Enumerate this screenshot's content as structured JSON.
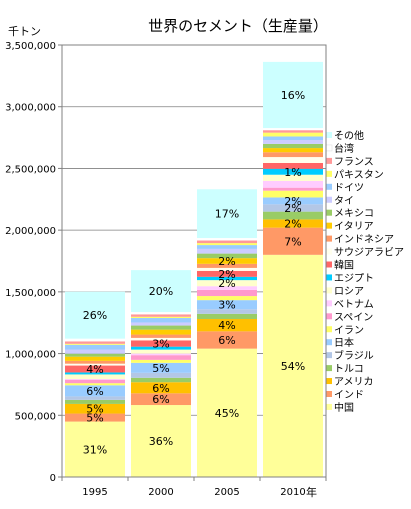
{
  "chart_data": {
    "type": "bar",
    "stacked": true,
    "title": "世界のセメント（生産量）",
    "ylabel": "千トン",
    "xlabel": "年",
    "ylim": [
      0,
      3500000
    ],
    "yticks": [
      0,
      500000,
      1000000,
      1500000,
      2000000,
      2500000,
      3000000,
      3500000
    ],
    "ytick_labels": [
      "0",
      "500,000",
      "1,000,000",
      "1,500,000",
      "2,000,000",
      "2,500,000",
      "3,000,000",
      "3,500,000"
    ],
    "grid": true,
    "legend_position": "right",
    "categories": [
      "1995",
      "2000",
      "2005",
      "2010"
    ],
    "series": [
      {
        "name": "中国",
        "color": "#ffff99",
        "values": [
          449000,
          583000,
          1040000,
          1800000
        ],
        "labels": [
          "31%",
          "36%",
          "45%",
          "54%"
        ]
      },
      {
        "name": "インド",
        "color": "#ff9966",
        "values": [
          65000,
          95000,
          140000,
          220000
        ],
        "labels": [
          "5%",
          "6%",
          "6%",
          "7%"
        ]
      },
      {
        "name": "アメリカ",
        "color": "#ffc000",
        "values": [
          78000,
          90000,
          100000,
          67000
        ],
        "labels": [
          "5%",
          "6%",
          "4%",
          "2%"
        ]
      },
      {
        "name": "トルコ",
        "color": "#99cc66",
        "values": [
          33000,
          36000,
          42000,
          63000
        ],
        "labels": [
          "",
          "",
          "",
          ""
        ]
      },
      {
        "name": "ブラジル",
        "color": "#b3c7e6",
        "values": [
          28000,
          40000,
          37000,
          59000
        ],
        "labels": [
          "",
          "",
          "",
          "2%"
        ]
      },
      {
        "name": "日本",
        "color": "#99ccff",
        "values": [
          90000,
          81000,
          74000,
          56000
        ],
        "labels": [
          "6%",
          "5%",
          "3%",
          "2%"
        ]
      },
      {
        "name": "イラン",
        "color": "#ffff66",
        "values": [
          17000,
          24000,
          33000,
          55000
        ],
        "labels": [
          "",
          "",
          "",
          ""
        ]
      },
      {
        "name": "スペイン",
        "color": "#ff99cc",
        "values": [
          28000,
          38000,
          50000,
          24000
        ],
        "labels": [
          "",
          "",
          "",
          ""
        ]
      },
      {
        "name": "ベトナム",
        "color": "#ffccff",
        "values": [
          6000,
          13000,
          30000,
          55000
        ],
        "labels": [
          "",
          "",
          "",
          ""
        ]
      },
      {
        "name": "ロシア",
        "color": "#ffffcc",
        "values": [
          37000,
          32000,
          49000,
          50000
        ],
        "labels": [
          "",
          "",
          "2%",
          ""
        ]
      },
      {
        "name": "エジプト",
        "color": "#00ccff",
        "values": [
          16000,
          24000,
          27000,
          48000
        ],
        "labels": [
          "",
          "",
          "",
          "1%"
        ]
      },
      {
        "name": "韓国",
        "color": "#ff6666",
        "values": [
          56000,
          51000,
          48000,
          47000
        ],
        "labels": [
          "4%",
          "3%",
          "2%",
          ""
        ]
      },
      {
        "name": "サウジアラビア",
        "color": "#ffffee",
        "values": [
          15000,
          20000,
          24000,
          48000
        ],
        "labels": [
          "",
          "",
          "",
          ""
        ]
      },
      {
        "name": "インドネシア",
        "color": "#ff9966",
        "values": [
          23000,
          27000,
          33000,
          39000
        ],
        "labels": [
          "",
          "",
          "",
          ""
        ]
      },
      {
        "name": "イタリア",
        "color": "#ffcc00",
        "values": [
          34000,
          40000,
          46000,
          34000
        ],
        "labels": [
          "",
          "",
          "2%",
          ""
        ]
      },
      {
        "name": "メキシコ",
        "color": "#99cc66",
        "values": [
          24000,
          33000,
          37000,
          34000
        ],
        "labels": [
          "",
          "",
          "",
          ""
        ]
      },
      {
        "name": "タイ",
        "color": "#ccccff",
        "values": [
          34000,
          25000,
          38000,
          31000
        ],
        "labels": [
          "",
          "",
          "",
          ""
        ]
      },
      {
        "name": "ドイツ",
        "color": "#99ccff",
        "values": [
          38000,
          36000,
          31000,
          29000
        ],
        "labels": [
          "",
          "",
          "",
          ""
        ]
      },
      {
        "name": "パキスタン",
        "color": "#ffff66",
        "values": [
          8000,
          10000,
          16000,
          31000
        ],
        "labels": [
          "",
          "",
          "",
          ""
        ]
      },
      {
        "name": "フランス",
        "color": "#ff9999",
        "values": [
          20000,
          20000,
          21000,
          20000
        ],
        "labels": [
          "",
          "",
          "",
          ""
        ]
      },
      {
        "name": "台湾",
        "color": "#ffffff",
        "values": [
          22000,
          18000,
          20000,
          17000
        ],
        "labels": [
          "",
          "",
          "",
          ""
        ]
      },
      {
        "name": "その他",
        "color": "#ccffff",
        "values": [
          380000,
          340000,
          395000,
          536000
        ],
        "labels": [
          "26%",
          "20%",
          "17%",
          "16%"
        ]
      }
    ]
  }
}
